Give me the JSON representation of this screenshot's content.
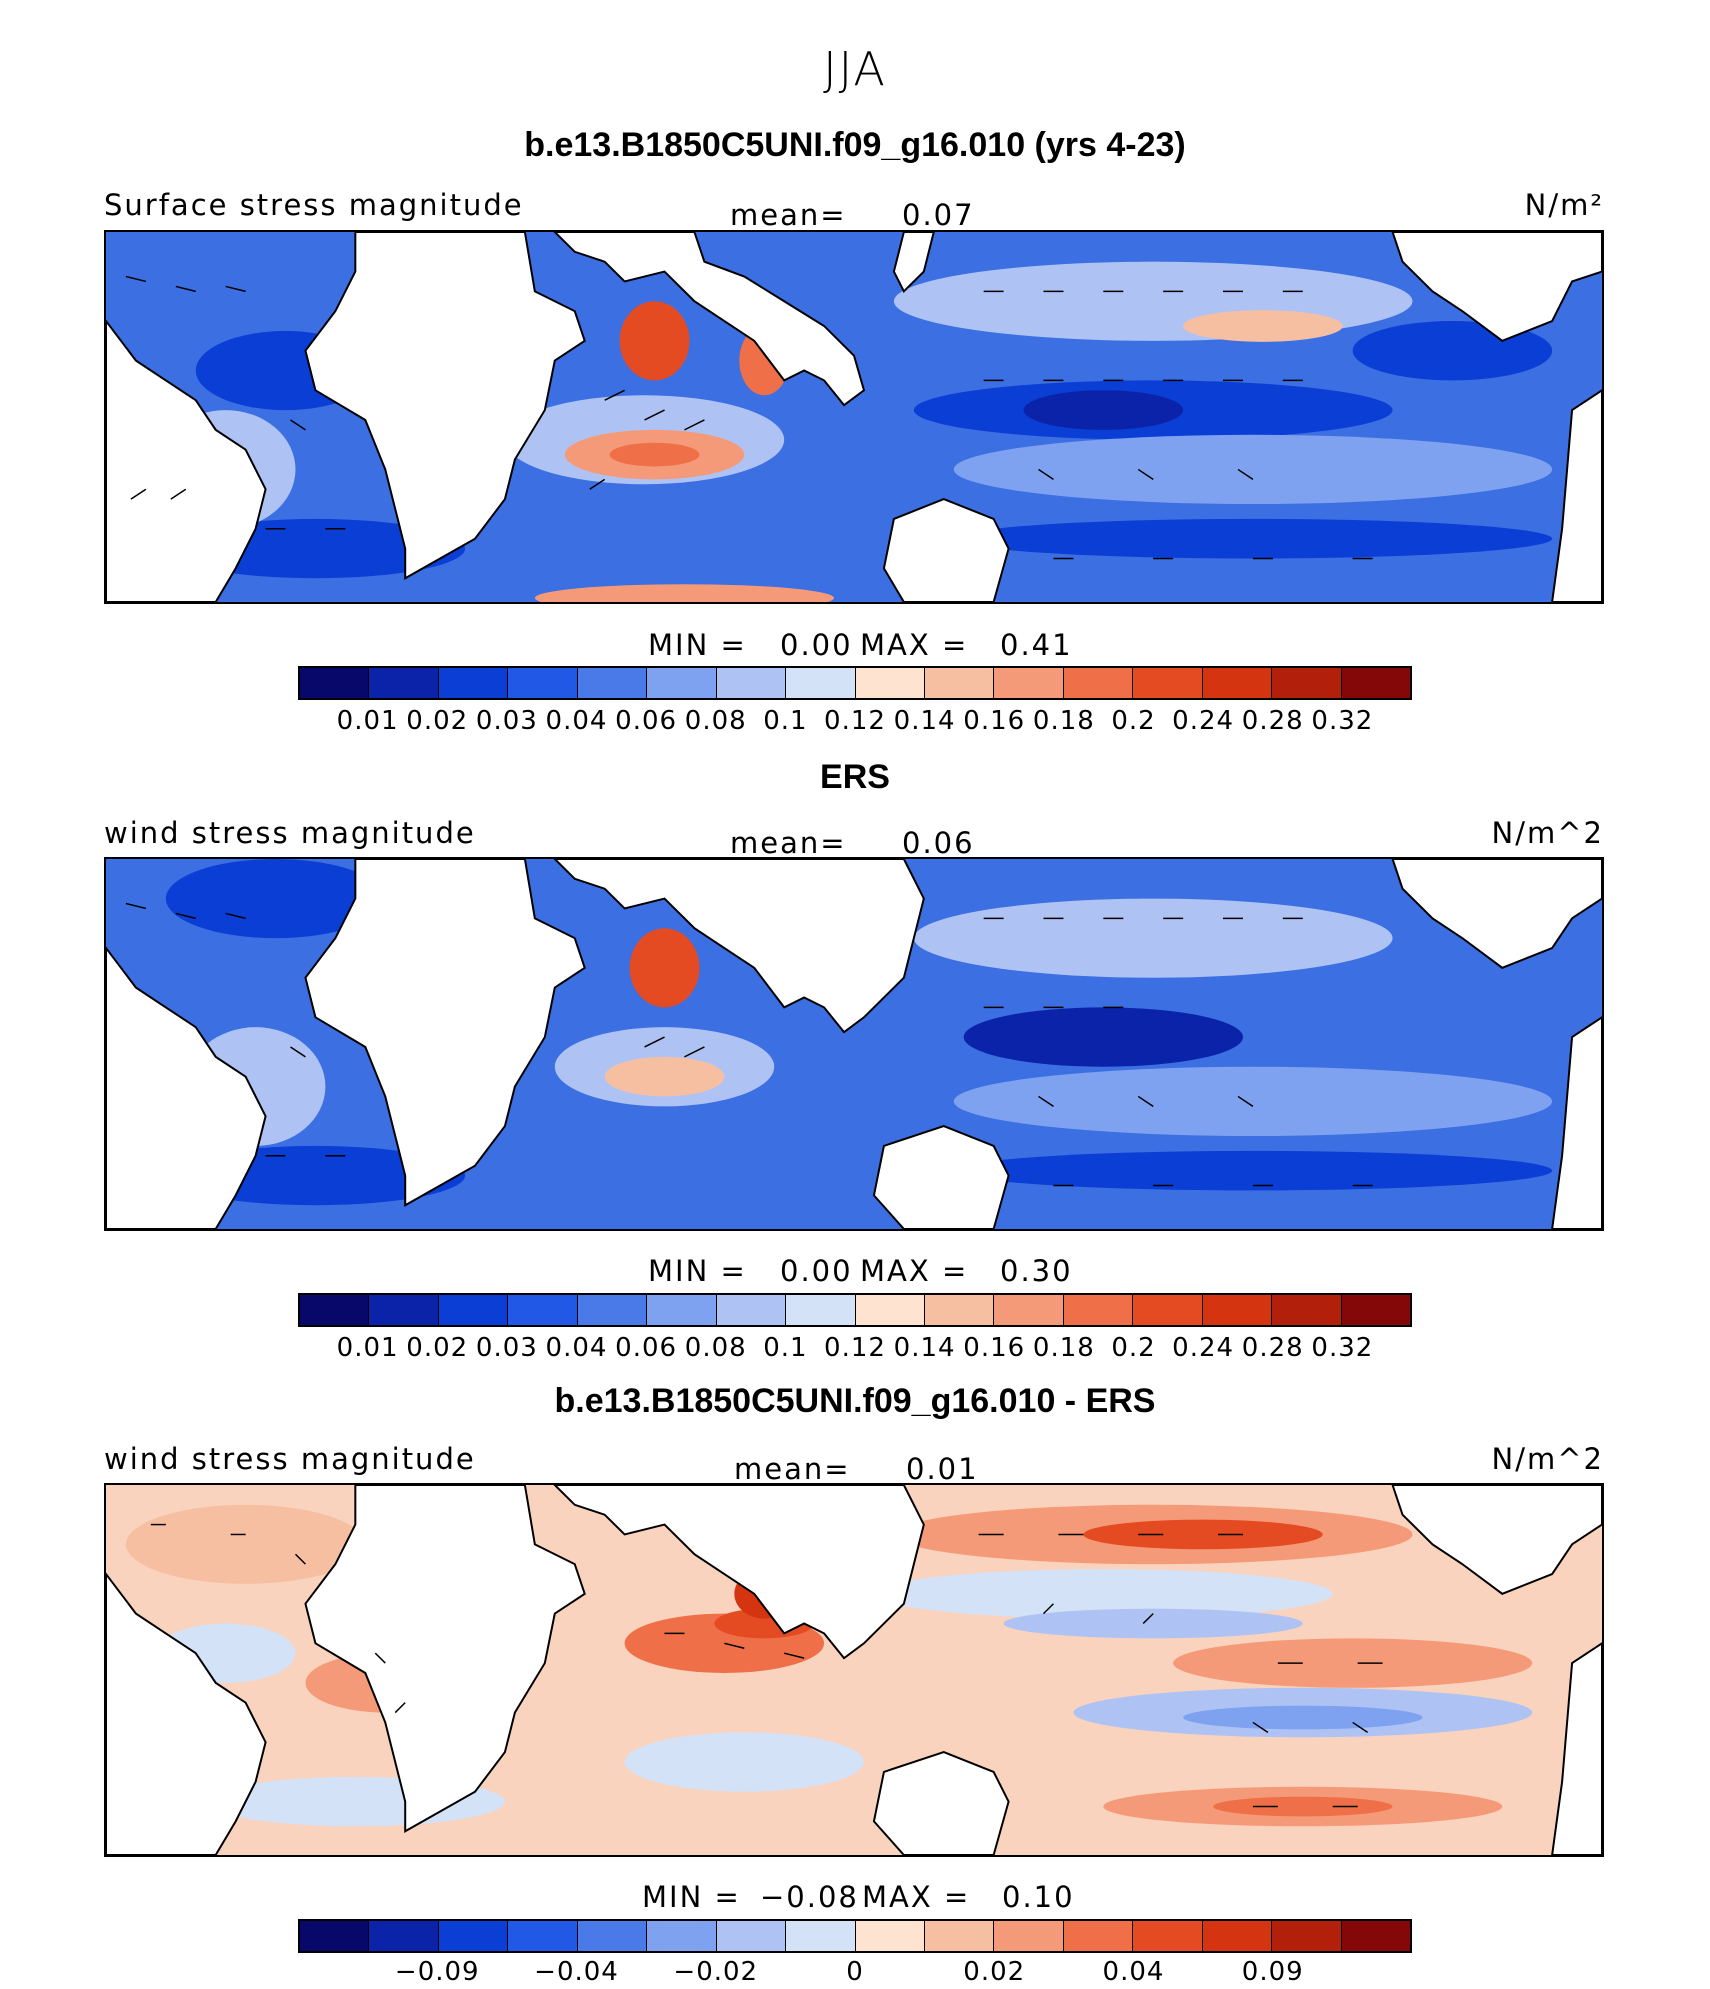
{
  "season": "JJA",
  "colors": {
    "c1": "#08086b",
    "c2": "#0a23a8",
    "c3": "#0b3ed4",
    "c4": "#2258e6",
    "c5": "#4a7ae8",
    "c6": "#7ea2ef",
    "c7": "#aec3f4",
    "c8": "#d4e2f8",
    "c9": "#fde3d0",
    "c10": "#f7bfa2",
    "c11": "#f59a78",
    "c12": "#ef7048",
    "c13": "#e54b22",
    "c14": "#d43410",
    "c15": "#b21f0a",
    "c16": "#850808",
    "land": "#ffffff"
  },
  "panels": [
    {
      "title": "b.e13.B1850C5UNI.f09_g16.010 (yrs 4-23)",
      "field_label": "Surface stress magnitude",
      "mean_label": "mean=",
      "mean_value": "0.07",
      "units": "N/m²",
      "min_label": "MIN =",
      "min_value": "0.00",
      "max_label": "MAX =",
      "max_value": "0.41",
      "colorbar_ticks": [
        "0.01",
        "0.02",
        "0.03",
        "0.04",
        "0.06",
        "0.08",
        "0.1",
        "0.12",
        "0.14",
        "0.16",
        "0.18",
        "0.2",
        "0.24",
        "0.28",
        "0.32"
      ]
    },
    {
      "title": "ERS",
      "field_label": "wind stress magnitude",
      "mean_label": "mean=",
      "mean_value": "0.06",
      "units": "N/m^2",
      "min_label": "MIN =",
      "min_value": "0.00",
      "max_label": "MAX =",
      "max_value": "0.30",
      "colorbar_ticks": [
        "0.01",
        "0.02",
        "0.03",
        "0.04",
        "0.06",
        "0.08",
        "0.1",
        "0.12",
        "0.14",
        "0.16",
        "0.18",
        "0.2",
        "0.24",
        "0.28",
        "0.32"
      ]
    },
    {
      "title": "b.e13.B1850C5UNI.f09_g16.010 - ERS",
      "field_label": "wind stress magnitude",
      "mean_label": "mean=",
      "mean_value": "0.01",
      "units": "N/m^2",
      "min_label": "MIN =",
      "min_value": "−0.08",
      "max_label": "MAX =",
      "max_value": "0.10",
      "colorbar_ticks": [
        "−0.09",
        "−0.04",
        "−0.02",
        "0",
        "0.02",
        "0.04",
        "0.09"
      ]
    }
  ]
}
